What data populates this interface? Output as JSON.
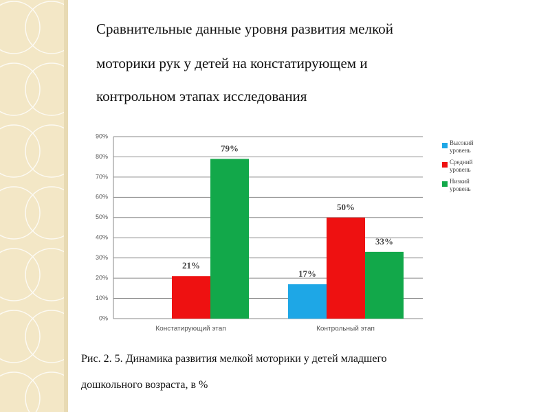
{
  "slide": {
    "title_lines": [
      "Сравнительные данные уровня развития мелкой",
      "моторики рук у детей на констатирующем и",
      "контрольном этапах исследования"
    ],
    "caption_lines": [
      "Рис. 2. 5. Динамика развития мелкой моторики у детей младшего",
      "дошкольного возраста, в %"
    ]
  },
  "chart_data": {
    "type": "bar",
    "categories": [
      "Констатирующий этап",
      "Контрольный этап"
    ],
    "series": [
      {
        "name": "Высокий уровень",
        "color": "#1ea7e6",
        "values": [
          null,
          17
        ],
        "value_labels": [
          null,
          "17%"
        ]
      },
      {
        "name": "Средний уровень",
        "color": "#ee1111",
        "values": [
          21,
          50
        ],
        "value_labels": [
          "21%",
          "50%"
        ]
      },
      {
        "name": "Низкий уровень",
        "color": "#12a84a",
        "values": [
          79,
          33
        ],
        "value_labels": [
          "79%",
          "33%"
        ]
      }
    ],
    "ylim": [
      0,
      90
    ],
    "yticks": [
      {
        "value": 0,
        "label": "0%"
      },
      {
        "value": 10,
        "label": "10%"
      },
      {
        "value": 20,
        "label": "20%"
      },
      {
        "value": 30,
        "label": "30%"
      },
      {
        "value": 40,
        "label": "40%"
      },
      {
        "value": 50,
        "label": "50%"
      },
      {
        "value": 60,
        "label": "60%"
      },
      {
        "value": 70,
        "label": "70%"
      },
      {
        "value": 80,
        "label": "80%"
      },
      {
        "value": 90,
        "label": "90%"
      }
    ],
    "grid": true,
    "legend": "right"
  }
}
